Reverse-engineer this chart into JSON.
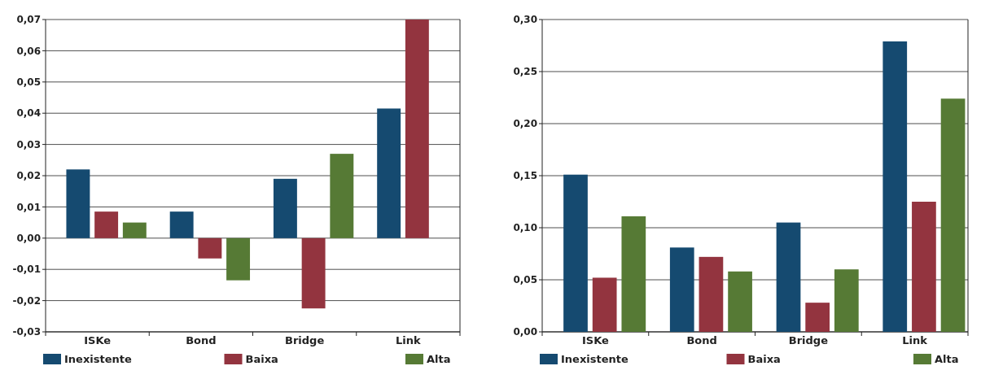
{
  "chart_data": [
    {
      "type": "bar",
      "categories": [
        "ISKe",
        "Bond",
        "Bridge",
        "Link"
      ],
      "series": [
        {
          "name": "Inexistente",
          "color": "#154a70",
          "values": [
            0.022,
            0.0085,
            0.019,
            0.0415
          ]
        },
        {
          "name": "Baixa",
          "color": "#93343f",
          "values": [
            0.0085,
            -0.0065,
            -0.0225,
            0.07
          ]
        },
        {
          "name": "Alta",
          "color": "#567a35",
          "values": [
            0.005,
            -0.0135,
            0.027,
            null
          ]
        }
      ],
      "ylim": [
        -0.03,
        0.07
      ],
      "yticks": [
        {
          "value": -0.03,
          "label": "-0,03"
        },
        {
          "value": -0.02,
          "label": "-0,02"
        },
        {
          "value": -0.01,
          "label": "-0,01"
        },
        {
          "value": 0,
          "label": "0,00"
        },
        {
          "value": 0.01,
          "label": "0,01"
        },
        {
          "value": 0.02,
          "label": "0,02"
        },
        {
          "value": 0.03,
          "label": "0,03"
        },
        {
          "value": 0.04,
          "label": "0,04"
        },
        {
          "value": 0.05,
          "label": "0,05"
        },
        {
          "value": 0.06,
          "label": "0,06"
        },
        {
          "value": 0.07,
          "label": "0,07"
        }
      ],
      "grid": "y",
      "legend": "bottom"
    },
    {
      "type": "bar",
      "categories": [
        "ISKe",
        "Bond",
        "Bridge",
        "Link"
      ],
      "series": [
        {
          "name": "Inexistente",
          "color": "#154a70",
          "values": [
            0.151,
            0.081,
            0.105,
            0.279
          ]
        },
        {
          "name": "Baixa",
          "color": "#93343f",
          "values": [
            0.052,
            0.072,
            0.028,
            0.125
          ]
        },
        {
          "name": "Alta",
          "color": "#567a35",
          "values": [
            0.111,
            0.058,
            0.06,
            0.224
          ]
        }
      ],
      "ylim": [
        0,
        0.3
      ],
      "yticks": [
        {
          "value": 0,
          "label": "0,00"
        },
        {
          "value": 0.05,
          "label": "0,05"
        },
        {
          "value": 0.1,
          "label": "0,10"
        },
        {
          "value": 0.15,
          "label": "0,15"
        },
        {
          "value": 0.2,
          "label": "0,20"
        },
        {
          "value": 0.25,
          "label": "0,25"
        },
        {
          "value": 0.3,
          "label": "0,30"
        }
      ],
      "grid": "y",
      "legend": "bottom"
    }
  ]
}
